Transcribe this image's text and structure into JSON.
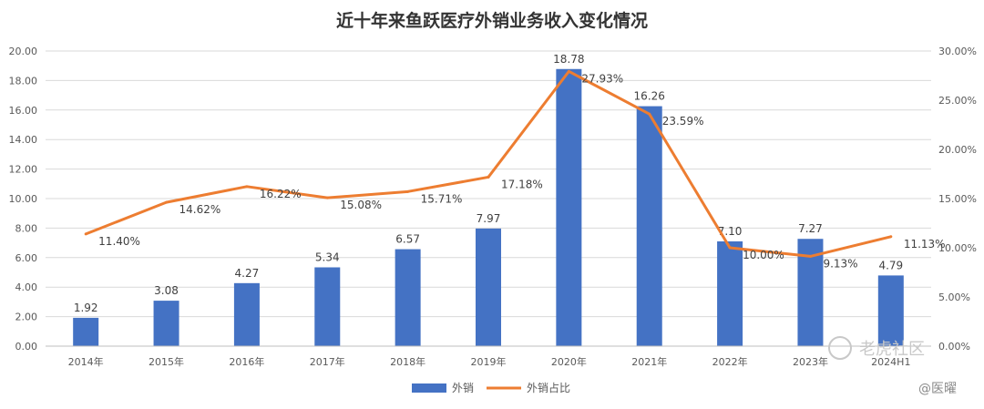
{
  "chart_data": {
    "type": "bar",
    "title": "近十年来鱼跃医疗外销业务收入变化情况",
    "categories": [
      "2014年",
      "2015年",
      "2016年",
      "2017年",
      "2018年",
      "2019年",
      "2020年",
      "2021年",
      "2022年",
      "2023年",
      "2024H1"
    ],
    "series": [
      {
        "name": "外销",
        "type": "bar",
        "axis": "left",
        "color": "#4472C4",
        "values": [
          1.92,
          3.08,
          4.27,
          5.34,
          6.57,
          7.97,
          18.78,
          16.26,
          7.1,
          7.27,
          4.79
        ],
        "labels": [
          "1.92",
          "3.08",
          "4.27",
          "5.34",
          "6.57",
          "7.97",
          "18.78",
          "16.26",
          "7.10",
          "7.27",
          "4.79"
        ]
      },
      {
        "name": "外销占比",
        "type": "line",
        "axis": "right",
        "color": "#ED7D31",
        "values": [
          11.4,
          14.62,
          16.22,
          15.08,
          15.71,
          17.18,
          27.93,
          23.59,
          10.0,
          9.13,
          11.13
        ],
        "labels": [
          "11.40%",
          "14.62%",
          "16.22%",
          "15.08%",
          "15.71%",
          "17.18%",
          "27.93%",
          "23.59%",
          "10.00%",
          "9.13%",
          "11.13%"
        ]
      }
    ],
    "ylim_left": [
      0,
      20
    ],
    "ylim_right": [
      0,
      30
    ],
    "left_ticks": [
      "0.00",
      "2.00",
      "4.00",
      "6.00",
      "8.00",
      "10.00",
      "12.00",
      "14.00",
      "16.00",
      "18.00",
      "20.00"
    ],
    "right_ticks": [
      "0.00%",
      "5.00%",
      "10.00%",
      "15.00%",
      "20.00%",
      "25.00%",
      "30.00%"
    ],
    "grid": true,
    "legend": "bottom"
  },
  "watermark": {
    "text1": "老虎社区",
    "text2": "@医曜"
  }
}
